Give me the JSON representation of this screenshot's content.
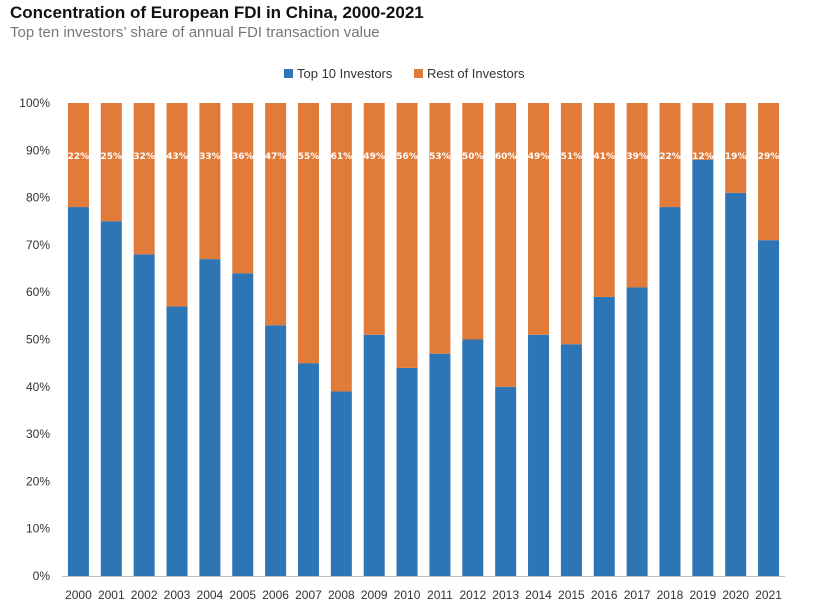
{
  "header": {
    "title": "Concentration of European FDI in China, 2000-2021",
    "subtitle": "Top ten investors’ share of annual FDI transaction value"
  },
  "chart_data": {
    "type": "bar",
    "stacked": true,
    "categories": [
      "2000",
      "2001",
      "2002",
      "2003",
      "2004",
      "2005",
      "2006",
      "2007",
      "2008",
      "2009",
      "2010",
      "2011",
      "2012",
      "2013",
      "2014",
      "2015",
      "2016",
      "2017",
      "2018",
      "2019",
      "2020",
      "2021"
    ],
    "series": [
      {
        "name": "Top 10 Investors",
        "color": "#2E75B6",
        "values": [
          78,
          75,
          68,
          57,
          67,
          64,
          53,
          45,
          39,
          51,
          44,
          47,
          50,
          40,
          51,
          49,
          59,
          61,
          78,
          88,
          81,
          71
        ]
      },
      {
        "name": "Rest of Investors",
        "color": "#E07B39",
        "values": [
          22,
          25,
          32,
          43,
          33,
          36,
          47,
          55,
          61,
          49,
          56,
          53,
          50,
          60,
          49,
          51,
          41,
          39,
          22,
          12,
          19,
          29
        ],
        "data_labels": [
          "22%",
          "25%",
          "32%",
          "43%",
          "33%",
          "36%",
          "47%",
          "55%",
          "61%",
          "49%",
          "56%",
          "53%",
          "50%",
          "60%",
          "49%",
          "51%",
          "41%",
          "39%",
          "22%",
          "12%",
          "19%",
          "29%"
        ]
      }
    ],
    "ylim": [
      0,
      100
    ],
    "yticks": [
      0,
      10,
      20,
      30,
      40,
      50,
      60,
      70,
      80,
      90,
      100
    ],
    "ytick_labels": [
      "0%",
      "10%",
      "20%",
      "30%",
      "40%",
      "50%",
      "60%",
      "70%",
      "80%",
      "90%",
      "100%"
    ],
    "legend_position": "top-center",
    "grid": false,
    "xlabel": "",
    "ylabel": ""
  }
}
